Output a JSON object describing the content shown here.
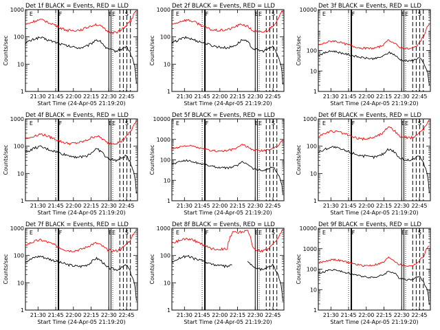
{
  "chart_data": [
    {
      "title": "Det 1f BLACK = Events, RED = LLD",
      "type": "line",
      "xlabel": "Start Time (24-Apr-05 21:19:20)",
      "ylabel": "Counts/sec",
      "xticks": [
        "21:30",
        "21:45",
        "22:00",
        "22:15",
        "22:30",
        "22:45"
      ],
      "yticks": [
        "1",
        "10",
        "100",
        "1000"
      ],
      "ylim": [
        1,
        1000
      ],
      "yscale": "log",
      "markers": [
        "E",
        "F",
        "E",
        "E",
        "S"
      ],
      "series": [
        {
          "color": "#000000",
          "values": [
            60,
            72,
            88,
            95,
            82,
            72,
            63,
            55,
            48,
            44,
            41,
            40,
            44,
            55,
            80,
            65,
            38,
            33,
            30,
            35,
            45,
            20,
            2
          ]
        },
        {
          "color": "#ff0000",
          "values": [
            280,
            330,
            390,
            420,
            380,
            320,
            260,
            210,
            180,
            170,
            175,
            185,
            210,
            260,
            290,
            240,
            170,
            150,
            150,
            170,
            260,
            400,
            900
          ]
        }
      ]
    },
    {
      "title": "Det 2f BLACK = Events, RED = LLD",
      "type": "line",
      "xlabel": "Start Time (24-Apr-05 21:19:20)",
      "ylabel": "Counts/sec",
      "xticks": [
        "21:30",
        "21:45",
        "22:00",
        "22:15",
        "22:30",
        "22:45"
      ],
      "yticks": [
        "1",
        "10",
        "100",
        "1000"
      ],
      "ylim": [
        1,
        1000
      ],
      "yscale": "log",
      "markers": [
        "E",
        "F",
        "E",
        "E",
        "S"
      ],
      "series": [
        {
          "color": "#000000",
          "values": [
            60,
            72,
            88,
            95,
            82,
            72,
            63,
            55,
            48,
            44,
            41,
            40,
            44,
            55,
            80,
            65,
            38,
            33,
            30,
            35,
            45,
            20,
            2
          ]
        },
        {
          "color": "#ff0000",
          "values": [
            280,
            330,
            390,
            420,
            380,
            320,
            260,
            210,
            180,
            170,
            175,
            185,
            210,
            260,
            290,
            240,
            170,
            150,
            150,
            170,
            260,
            400,
            900
          ]
        }
      ]
    },
    {
      "title": "Det 3f BLACK = Events, RED = LLD",
      "type": "line",
      "xlabel": "Start Time (24-Apr-05 21:19:20)",
      "ylabel": "Counts/sec",
      "xticks": [
        "21:30",
        "21:45",
        "22:00",
        "22:15",
        "22:30",
        "22:45"
      ],
      "yticks": [
        "1",
        "10",
        "100",
        "10000"
      ],
      "ylim": [
        1,
        10000
      ],
      "yscale": "log",
      "markers": [
        "E",
        "F",
        "E",
        "E",
        "S"
      ],
      "series": [
        {
          "color": "#000000",
          "values": [
            60,
            72,
            88,
            95,
            82,
            72,
            63,
            55,
            48,
            44,
            41,
            40,
            44,
            55,
            80,
            65,
            38,
            33,
            30,
            35,
            45,
            20,
            2
          ]
        },
        {
          "color": "#ff0000",
          "values": [
            180,
            220,
            270,
            300,
            260,
            220,
            190,
            160,
            140,
            130,
            125,
            130,
            150,
            190,
            330,
            230,
            150,
            130,
            120,
            140,
            220,
            500,
            2000
          ]
        }
      ]
    },
    {
      "title": "Det 4f BLACK = Events, RED = LLD",
      "type": "line",
      "xlabel": "Start Time (24-Apr-05 21:19:20)",
      "ylabel": "Counts/sec",
      "xticks": [
        "21:30",
        "21:45",
        "22:00",
        "22:15",
        "22:30",
        "22:45"
      ],
      "yticks": [
        "1",
        "10",
        "100",
        "1000"
      ],
      "ylim": [
        1,
        1000
      ],
      "yscale": "log",
      "markers": [
        "E",
        "F",
        "E",
        "E",
        "S"
      ],
      "series": [
        {
          "color": "#000000",
          "values": [
            60,
            72,
            88,
            95,
            82,
            72,
            63,
            55,
            48,
            44,
            41,
            40,
            44,
            55,
            80,
            65,
            38,
            33,
            30,
            35,
            45,
            20,
            2
          ]
        },
        {
          "color": "#ff0000",
          "values": [
            180,
            210,
            250,
            280,
            250,
            210,
            180,
            150,
            130,
            125,
            130,
            140,
            160,
            200,
            240,
            200,
            140,
            130,
            130,
            150,
            220,
            380,
            800
          ]
        }
      ]
    },
    {
      "title": "Det 5f BLACK = Events, RED = LLD",
      "type": "line",
      "xlabel": "Start Time (24-Apr-05 21:19:20)",
      "ylabel": "Counts/sec",
      "xticks": [
        "21:30",
        "21:45",
        "22:00",
        "22:15",
        "22:30",
        "22:45"
      ],
      "yticks": [
        "1",
        "10",
        "100",
        "1000",
        "10000"
      ],
      "ylim": [
        1,
        10000
      ],
      "yscale": "log",
      "markers": [
        "E",
        "F",
        "E",
        "E",
        "S"
      ],
      "series": [
        {
          "color": "#000000",
          "values": [
            60,
            72,
            88,
            95,
            82,
            72,
            63,
            55,
            48,
            44,
            41,
            40,
            44,
            55,
            80,
            65,
            38,
            33,
            30,
            35,
            45,
            20,
            2
          ]
        },
        {
          "color": "#ff0000",
          "values": [
            350,
            400,
            460,
            500,
            460,
            400,
            350,
            310,
            280,
            270,
            270,
            280,
            320,
            390,
            560,
            420,
            310,
            290,
            280,
            300,
            360,
            500,
            900
          ]
        }
      ]
    },
    {
      "title": "Det 6f BLACK = Events, RED = LLD",
      "type": "line",
      "xlabel": "Start Time (24-Apr-05 21:19:20)",
      "ylabel": "Counts/sec",
      "xticks": [
        "21:30",
        "21:45",
        "22:00",
        "22:15",
        "22:30",
        "22:45"
      ],
      "yticks": [
        "1",
        "10",
        "100",
        "1000"
      ],
      "ylim": [
        1,
        1000
      ],
      "yscale": "log",
      "markers": [
        "E",
        "F",
        "E",
        "E",
        "S"
      ],
      "series": [
        {
          "color": "#000000",
          "values": [
            60,
            72,
            88,
            95,
            82,
            72,
            63,
            55,
            48,
            44,
            41,
            40,
            44,
            55,
            80,
            65,
            38,
            33,
            30,
            35,
            45,
            20,
            2
          ]
        },
        {
          "color": "#ff0000",
          "values": [
            240,
            280,
            330,
            360,
            330,
            290,
            250,
            210,
            190,
            185,
            195,
            215,
            255,
            320,
            560,
            380,
            240,
            210,
            200,
            220,
            300,
            450,
            850
          ]
        }
      ]
    },
    {
      "title": "Det 7f BLACK = Events, RED = LLD",
      "type": "line",
      "xlabel": "Start Time (24-Apr-05 21:19:20)",
      "ylabel": "Counts/sec",
      "xticks": [
        "21:30",
        "21:45",
        "22:00",
        "22:15",
        "22:30",
        "22:45"
      ],
      "yticks": [
        "1",
        "10",
        "100",
        "1000"
      ],
      "ylim": [
        1,
        1000
      ],
      "yscale": "log",
      "markers": [
        "E",
        "F",
        "E",
        "E",
        "S"
      ],
      "series": [
        {
          "color": "#000000",
          "values": [
            60,
            72,
            88,
            95,
            82,
            72,
            63,
            55,
            48,
            44,
            41,
            40,
            44,
            55,
            80,
            65,
            38,
            33,
            30,
            35,
            45,
            20,
            2
          ]
        },
        {
          "color": "#ff0000",
          "values": [
            250,
            290,
            340,
            370,
            330,
            280,
            230,
            190,
            160,
            150,
            155,
            170,
            200,
            250,
            290,
            240,
            170,
            150,
            150,
            170,
            260,
            400,
            900
          ]
        }
      ]
    },
    {
      "title": "Det 8f BLACK = Events, RED = LLD",
      "type": "line",
      "xlabel": "Start Time (24-Apr-05 21:19:20)",
      "ylabel": "Counts/sec",
      "xticks": [
        "21:30",
        "21:45",
        "22:00",
        "22:15",
        "22:30",
        "22:45"
      ],
      "yticks": [
        "1",
        "10",
        "100",
        "1000"
      ],
      "ylim": [
        1,
        1000
      ],
      "yscale": "log",
      "markers": [
        "E",
        "F",
        "E",
        "E",
        "S"
      ],
      "series": [
        {
          "color": "#000000",
          "values": [
            60,
            72,
            88,
            95,
            82,
            72,
            63,
            55,
            48,
            44,
            41,
            40,
            44,
            null,
            null,
            65,
            38,
            33,
            30,
            35,
            45,
            20,
            2
          ]
        },
        {
          "color": "#ff0000",
          "values": [
            280,
            330,
            390,
            420,
            380,
            320,
            260,
            210,
            180,
            170,
            175,
            185,
            700,
            700,
            750,
            800,
            200,
            150,
            150,
            170,
            260,
            400,
            900
          ]
        }
      ]
    },
    {
      "title": "Det 9f BLACK = Events, RED = LLD",
      "type": "line",
      "xlabel": "Start Time (24-Apr-05 21:19:20)",
      "ylabel": "Counts/sec",
      "xticks": [
        "21:30",
        "21:45",
        "22:00",
        "22:15",
        "22:30",
        "22:45"
      ],
      "yticks": [
        "1",
        "10",
        "100",
        "1000",
        "10000"
      ],
      "ylim": [
        1,
        10000
      ],
      "yscale": "log",
      "markers": [
        "E",
        "F",
        "E",
        "E",
        "S"
      ],
      "series": [
        {
          "color": "#000000",
          "values": [
            60,
            72,
            88,
            95,
            82,
            72,
            63,
            55,
            48,
            44,
            41,
            40,
            44,
            55,
            80,
            65,
            38,
            33,
            30,
            35,
            45,
            20,
            2
          ]
        },
        {
          "color": "#ff0000",
          "values": [
            200,
            230,
            270,
            300,
            270,
            240,
            210,
            180,
            160,
            150,
            150,
            160,
            180,
            220,
            380,
            260,
            170,
            150,
            140,
            160,
            240,
            450,
            1500
          ]
        }
      ]
    }
  ]
}
